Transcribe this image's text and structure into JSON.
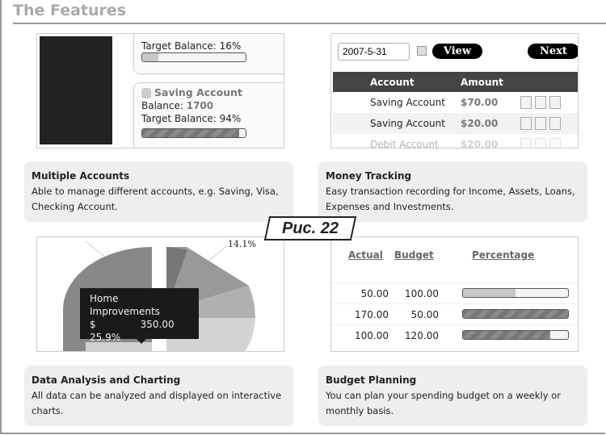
{
  "page_title": "The Features",
  "figure_label": "Рис. 22",
  "accounts_panel": {
    "first": {
      "target_label": "Target Balance: 16%",
      "target_fraction": 0.16
    },
    "second": {
      "name": "Saving Account",
      "balance_label": "Balance:",
      "balance_value": "1700",
      "target_label": "Target Balance: 94%",
      "target_fraction": 0.94
    }
  },
  "tracking_panel": {
    "date_value": "2007-5-31",
    "view_label": "View",
    "next_label": "Next",
    "columns": [
      "Account",
      "Amount"
    ],
    "rows": [
      {
        "account": "Saving Account",
        "amount": "$70.00"
      },
      {
        "account": "Saving Account",
        "amount": "$20.00"
      },
      {
        "account": "Debit Account",
        "amount": "$20.00"
      }
    ]
  },
  "chart_panel": {
    "slice_label": "14.1%",
    "tooltip": {
      "name": "Home Improvements",
      "currency": "$",
      "amount": "350.00",
      "percent": "25.9%"
    }
  },
  "budget_panel": {
    "columns": [
      "Actual",
      "Budget",
      "Percentage"
    ],
    "rows": [
      {
        "actual": "50.00",
        "budget": "100.00",
        "fraction": 0.5
      },
      {
        "actual": "170.00",
        "budget": "50.00",
        "fraction": 1.0
      },
      {
        "actual": "100.00",
        "budget": "120.00",
        "fraction": 0.83
      }
    ]
  },
  "features": [
    {
      "title": "Multiple Accounts",
      "text": "Able to manage different accounts, e.g. Saving, Visa, Checking Account."
    },
    {
      "title": "Money Tracking",
      "text": "Easy transaction recording for Income, Assets, Loans, Expenses and Investments."
    },
    {
      "title": "Data Analysis and Charting",
      "text": "All data can be analyzed and displayed on interactive charts."
    },
    {
      "title": "Budget Planning",
      "text": "You can plan your spending budget on a weekly or monthly basis."
    }
  ]
}
